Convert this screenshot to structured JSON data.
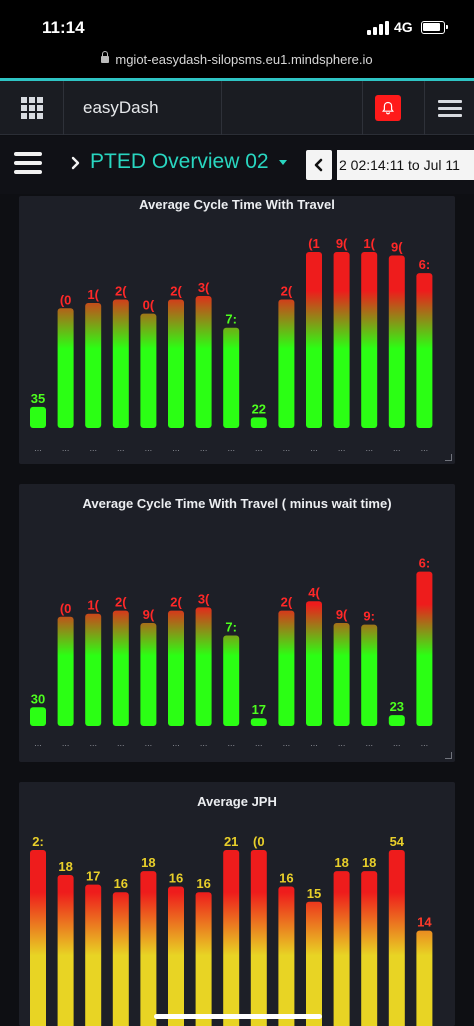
{
  "status_bar": {
    "time": "11:14",
    "network": "4G",
    "signal_icon": "signal-icon",
    "battery_icon": "battery-icon"
  },
  "browser": {
    "url": "mgiot-easydash-silopsms.eu1.mindsphere.io",
    "lock_icon": "lock-icon"
  },
  "header": {
    "app_title": "easyDash",
    "grid_icon": "app-grid-icon",
    "bell_icon": "bell-icon",
    "menu_icon": "hamburger-icon",
    "alert_color": "#ff1a1a"
  },
  "dashboard": {
    "title": "PTED Overview 02",
    "date_range": "2 02:14:11 to Jul 11",
    "accent_color": "#29d6c0"
  },
  "widgets": [
    {
      "title": "Average Cycle Time With Travel",
      "chart_data": {
        "type": "bar",
        "title": "Average Cycle Time With Travel",
        "value_labels": [
          "35",
          "(0",
          "1(",
          "2(",
          "0(",
          "2(",
          "3(",
          "7:",
          "22",
          "2(",
          "(1",
          "9(",
          "1(",
          "9(",
          "6:"
        ],
        "values": [
          0.12,
          0.68,
          0.71,
          0.73,
          0.65,
          0.73,
          0.75,
          0.57,
          0.06,
          0.73,
          1.0,
          1.0,
          1.0,
          0.98,
          0.88
        ],
        "colors": [
          "#2bff14",
          "#ee1c1c"
        ],
        "x_labels": [
          "...",
          "...",
          "...",
          "...",
          "...",
          "...",
          "...",
          "...",
          "...",
          "...",
          "...",
          "...",
          "...",
          "...",
          "..."
        ]
      }
    },
    {
      "title": "Average Cycle Time With Travel ( minus wait time)",
      "chart_data": {
        "type": "bar",
        "title": "Average Cycle Time With Travel ( minus wait time)",
        "value_labels": [
          "30",
          "(0",
          "1(",
          "2(",
          "9(",
          "2(",
          "3(",
          "7:",
          "17",
          "2(",
          "4(",
          "9(",
          "9:",
          "23",
          "6:"
        ],
        "values": [
          0.12,
          0.7,
          0.72,
          0.74,
          0.66,
          0.74,
          0.76,
          0.58,
          0.05,
          0.74,
          0.8,
          0.66,
          0.65,
          0.07,
          0.99
        ],
        "colors": [
          "#2bff14",
          "#ee1c1c"
        ],
        "x_labels": [
          "...",
          "...",
          "...",
          "...",
          "...",
          "...",
          "...",
          "...",
          "...",
          "...",
          "...",
          "...",
          "...",
          "...",
          "..."
        ]
      }
    },
    {
      "title": "Average JPH",
      "chart_data": {
        "type": "bar",
        "title": "Average JPH",
        "value_labels": [
          "2:",
          "18",
          "17",
          "16",
          "18",
          "16",
          "16",
          "21",
          "(0",
          "16",
          "15",
          "18",
          "18",
          "54",
          "14"
        ],
        "values": [
          1.0,
          0.87,
          0.82,
          0.78,
          0.89,
          0.81,
          0.78,
          1.0,
          1.0,
          0.81,
          0.73,
          0.89,
          0.89,
          1.0,
          0.58
        ],
        "colors": [
          "#e8d424",
          "#ee1c1c"
        ]
      }
    }
  ],
  "home_indicator": "home-indicator"
}
